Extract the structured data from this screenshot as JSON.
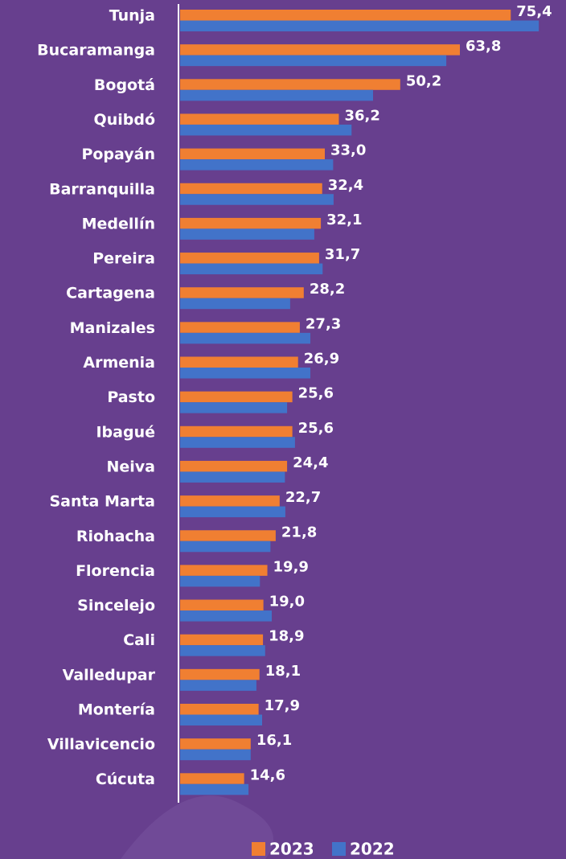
{
  "chart_data": {
    "type": "hbar",
    "categories": [
      "Tunja",
      "Bucaramanga",
      "Bogotá",
      "Quibdó",
      "Popayán",
      "Barranquilla",
      "Medellín",
      "Pereira",
      "Cartagena",
      "Manizales",
      "Armenia",
      "Pasto",
      "Ibagué",
      "Neiva",
      "Santa Marta",
      "Riohacha",
      "Florencia",
      "Sincelejo",
      "Cali",
      "Valledupar",
      "Montería",
      "Villavicencio",
      "Cúcuta"
    ],
    "series": [
      {
        "name": "2023",
        "color": "#f07f32",
        "values": [
          75.4,
          63.8,
          50.2,
          36.2,
          33.0,
          32.4,
          32.1,
          31.7,
          28.2,
          27.3,
          26.9,
          25.6,
          25.6,
          24.4,
          22.7,
          21.8,
          19.9,
          19.0,
          18.9,
          18.1,
          17.9,
          16.1,
          14.6
        ],
        "value_labels": [
          "75,4",
          "63,8",
          "50,2",
          "36,2",
          "33,0",
          "32,4",
          "32,1",
          "31,7",
          "28,2",
          "27,3",
          "26,9",
          "25,6",
          "25,6",
          "24,4",
          "22,7",
          "21,8",
          "19,9",
          "19,0",
          "18,9",
          "18,1",
          "17,9",
          "16,1",
          "14,6"
        ]
      },
      {
        "name": "2022",
        "color": "#4273c9",
        "values": [
          81.8,
          60.7,
          44.0,
          39.1,
          34.9,
          35.0,
          30.6,
          32.5,
          25.1,
          29.7,
          29.7,
          24.4,
          26.2,
          23.9,
          24.0,
          20.6,
          18.2,
          20.9,
          19.4,
          17.4,
          18.7,
          16.1,
          15.6
        ]
      }
    ],
    "xlim": [
      0,
      88
    ]
  }
}
